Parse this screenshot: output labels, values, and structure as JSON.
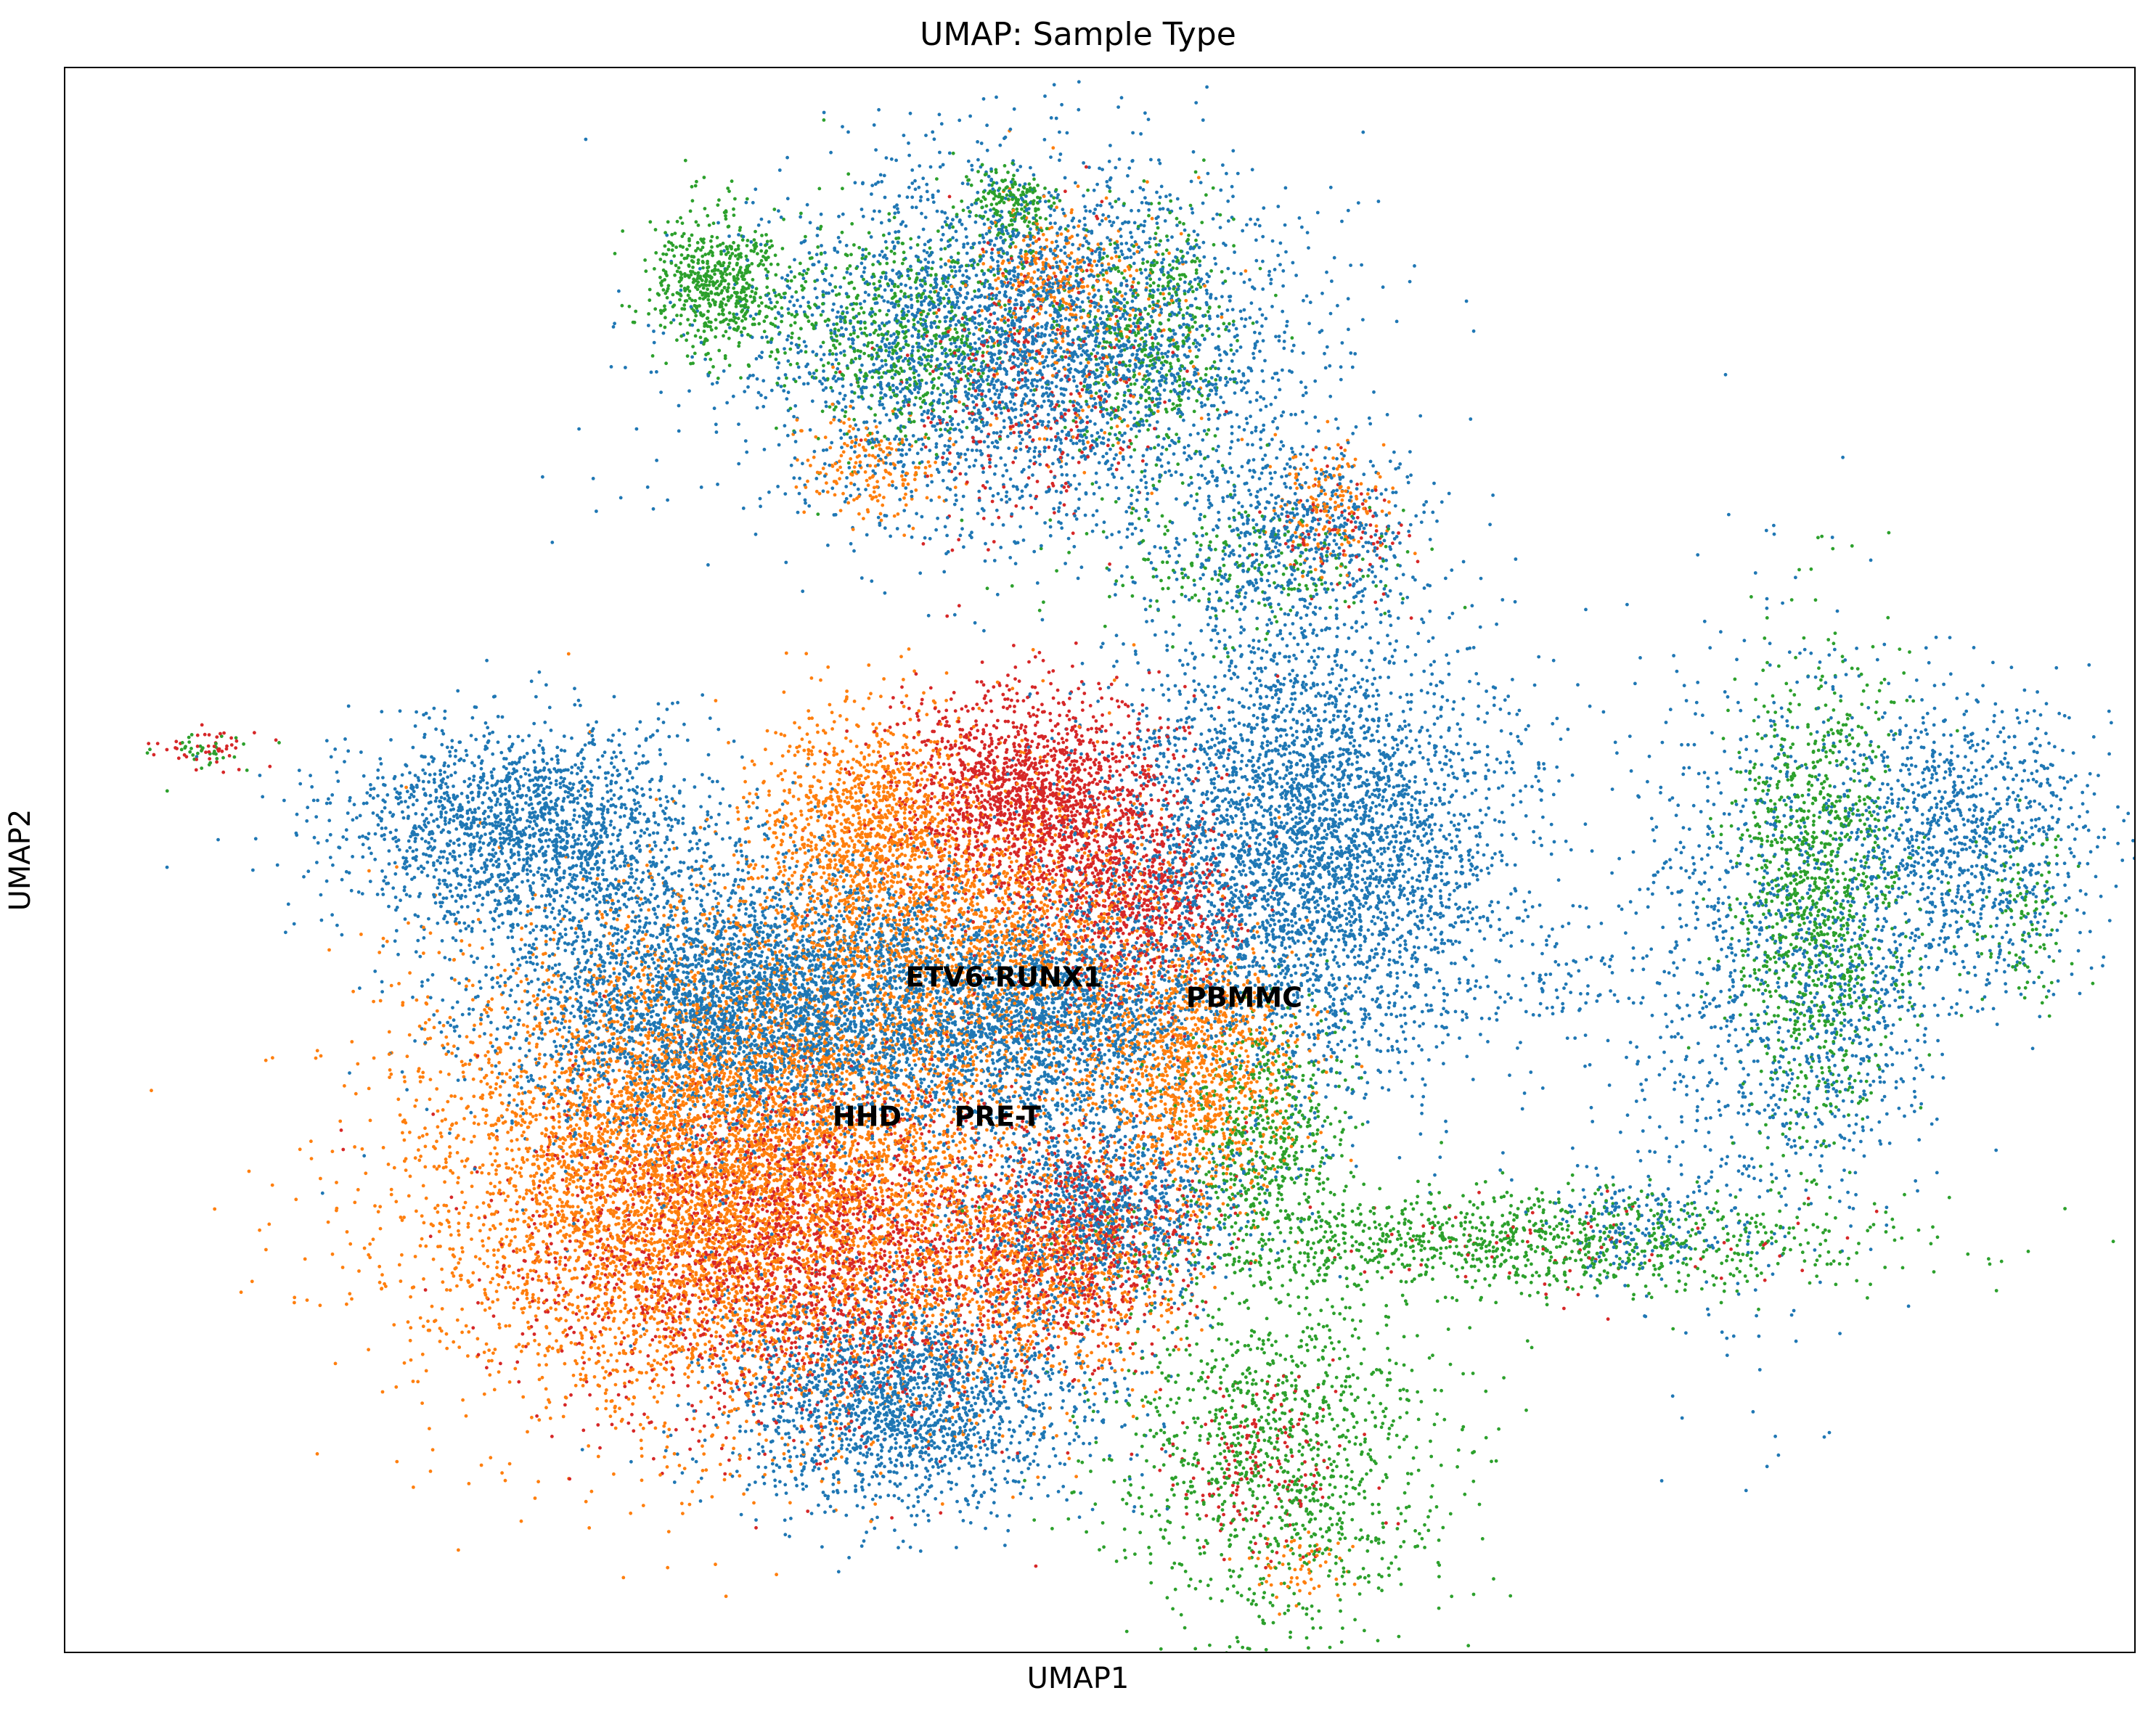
{
  "chart_data": {
    "type": "scatter",
    "title": "UMAP: Sample Type",
    "xlabel": "UMAP1",
    "ylabel": "UMAP2",
    "xlim": [
      0,
      100
    ],
    "ylim": [
      0,
      100
    ],
    "grid": false,
    "legend": "none",
    "ticks": "none",
    "series": [
      {
        "name": "ETV6-RUNX1",
        "color": "#1f77b4"
      },
      {
        "name": "HHD",
        "color": "#ff7f0e"
      },
      {
        "name": "PRE-T",
        "color": "#d62728"
      },
      {
        "name": "PBMMC",
        "color": "#2ca02c"
      }
    ],
    "annotations": [
      {
        "text": "ETV6-RUNX1",
        "x": 45.3,
        "y": 42.6
      },
      {
        "text": "PBMMC",
        "x": 56.9,
        "y": 41.3
      },
      {
        "text": "HHD",
        "x": 38.7,
        "y": 33.8
      },
      {
        "text": "PRE-T",
        "x": 45.0,
        "y": 33.8
      }
    ],
    "clusters": [
      {
        "series": "PBMMC",
        "x": 31.5,
        "y": 86.5,
        "sx": 1.6,
        "sy": 2.2,
        "n": 600
      },
      {
        "series": "PBMMC",
        "x": 45.5,
        "y": 91.5,
        "sx": 1.2,
        "sy": 1.2,
        "n": 180
      },
      {
        "series": "ETV6-RUNX1",
        "x": 46.5,
        "y": 82.5,
        "sx": 6.5,
        "sy": 5.6,
        "n": 3600
      },
      {
        "series": "PBMMC",
        "x": 40.5,
        "y": 83.5,
        "sx": 2.8,
        "sy": 3.5,
        "n": 650
      },
      {
        "series": "PBMMC",
        "x": 52.5,
        "y": 83.0,
        "sx": 2.0,
        "sy": 4.0,
        "n": 500
      },
      {
        "series": "HHD",
        "x": 47.5,
        "y": 87.5,
        "sx": 1.5,
        "sy": 1.6,
        "n": 160
      },
      {
        "series": "HHD",
        "x": 39.0,
        "y": 75.0,
        "sx": 1.6,
        "sy": 1.8,
        "n": 180
      },
      {
        "series": "PRE-T",
        "x": 47.0,
        "y": 80.0,
        "sx": 3.2,
        "sy": 4.5,
        "n": 320
      },
      {
        "series": "HHD",
        "x": 49.0,
        "y": 84.0,
        "sx": 3.2,
        "sy": 4.0,
        "n": 240
      },
      {
        "series": "ETV6-RUNX1",
        "x": 59.5,
        "y": 70.5,
        "sx": 3.0,
        "sy": 3.0,
        "n": 650
      },
      {
        "series": "HHD",
        "x": 61.0,
        "y": 72.0,
        "sx": 1.5,
        "sy": 2.0,
        "n": 160
      },
      {
        "series": "PBMMC",
        "x": 57.0,
        "y": 68.5,
        "sx": 4.0,
        "sy": 2.0,
        "n": 220
      },
      {
        "series": "PRE-T",
        "x": 61.5,
        "y": 71.0,
        "sx": 2.0,
        "sy": 2.0,
        "n": 80
      },
      {
        "series": "PRE-T",
        "x": 6.8,
        "y": 57.0,
        "sx": 1.2,
        "sy": 0.7,
        "n": 45
      },
      {
        "series": "PBMMC",
        "x": 6.8,
        "y": 57.0,
        "sx": 1.2,
        "sy": 0.7,
        "n": 35
      },
      {
        "series": "ETV6-RUNX1",
        "x": 22.0,
        "y": 52.0,
        "sx": 4.3,
        "sy": 3.3,
        "n": 1900
      },
      {
        "series": "ETV6-RUNX1",
        "x": 34.0,
        "y": 41.0,
        "sx": 6.5,
        "sy": 4.5,
        "n": 4800
      },
      {
        "series": "HHD",
        "x": 31.5,
        "y": 30.5,
        "sx": 7.0,
        "sy": 7.5,
        "n": 7500
      },
      {
        "series": "PRE-T",
        "x": 35.5,
        "y": 25.5,
        "sx": 6.5,
        "sy": 5.5,
        "n": 2400
      },
      {
        "series": "ETV6-RUNX1",
        "x": 40.5,
        "y": 16.0,
        "sx": 4.5,
        "sy": 3.5,
        "n": 2000
      },
      {
        "series": "HHD",
        "x": 38.5,
        "y": 52.5,
        "sx": 2.5,
        "sy": 3.5,
        "n": 1000
      },
      {
        "series": "PRE-T",
        "x": 46.5,
        "y": 54.0,
        "sx": 3.3,
        "sy": 3.3,
        "n": 1700
      },
      {
        "series": "PRE-T",
        "x": 51.5,
        "y": 47.5,
        "sx": 2.5,
        "sy": 3.5,
        "n": 800
      },
      {
        "series": "HHD",
        "x": 44.0,
        "y": 45.5,
        "sx": 5.0,
        "sy": 5.0,
        "n": 1900
      },
      {
        "series": "ETV6-RUNX1",
        "x": 47.5,
        "y": 40.0,
        "sx": 3.5,
        "sy": 3.5,
        "n": 1600
      },
      {
        "series": "ETV6-RUNX1",
        "x": 60.0,
        "y": 50.5,
        "sx": 5.0,
        "sy": 7.0,
        "n": 4300
      },
      {
        "series": "HHD",
        "x": 54.5,
        "y": 37.0,
        "sx": 2.5,
        "sy": 4.0,
        "n": 1200
      },
      {
        "series": "PBMMC",
        "x": 58.0,
        "y": 33.0,
        "sx": 2.0,
        "sy": 3.5,
        "n": 550
      },
      {
        "series": "ETV6-RUNX1",
        "x": 50.0,
        "y": 28.0,
        "sx": 3.5,
        "sy": 3.0,
        "n": 1100
      },
      {
        "series": "PRE-T",
        "x": 49.0,
        "y": 26.0,
        "sx": 3.0,
        "sy": 3.0,
        "n": 700
      },
      {
        "series": "HHD",
        "x": 47.0,
        "y": 24.0,
        "sx": 3.5,
        "sy": 3.5,
        "n": 900
      },
      {
        "series": "PBMMC",
        "x": 58.5,
        "y": 12.5,
        "sx": 4.0,
        "sy": 5.5,
        "n": 1200
      },
      {
        "series": "PRE-T",
        "x": 57.5,
        "y": 12.0,
        "sx": 2.0,
        "sy": 3.0,
        "n": 180
      },
      {
        "series": "HHD",
        "x": 59.5,
        "y": 5.5,
        "sx": 1.5,
        "sy": 1.2,
        "n": 60
      },
      {
        "series": "PBMMC",
        "x": 70.0,
        "y": 26.0,
        "sx": 9.0,
        "sy": 1.6,
        "n": 1100
      },
      {
        "series": "PRE-T",
        "x": 70.0,
        "y": 26.0,
        "sx": 8.0,
        "sy": 1.5,
        "n": 80
      },
      {
        "series": "ETV6-RUNX1",
        "x": 75.5,
        "y": 27.0,
        "sx": 2.0,
        "sy": 1.8,
        "n": 160
      },
      {
        "series": "ETV6-RUNX1",
        "x": 81.5,
        "y": 44.0,
        "sx": 3.5,
        "sy": 10.0,
        "n": 1000
      },
      {
        "series": "ETV6-RUNX1",
        "x": 91.5,
        "y": 51.5,
        "sx": 3.3,
        "sy": 4.5,
        "n": 1100
      },
      {
        "series": "ETV6-RUNX1",
        "x": 86.5,
        "y": 40.0,
        "sx": 2.0,
        "sy": 4.0,
        "n": 300
      },
      {
        "series": "PBMMC",
        "x": 84.5,
        "y": 48.0,
        "sx": 2.0,
        "sy": 7.5,
        "n": 1200
      },
      {
        "series": "PBMMC",
        "x": 94.5,
        "y": 47.0,
        "sx": 1.2,
        "sy": 3.0,
        "n": 120
      },
      {
        "series": "ETV6-RUNX1",
        "x": 72.5,
        "y": 42.0,
        "sx": 1.5,
        "sy": 1.2,
        "n": 50
      }
    ]
  }
}
